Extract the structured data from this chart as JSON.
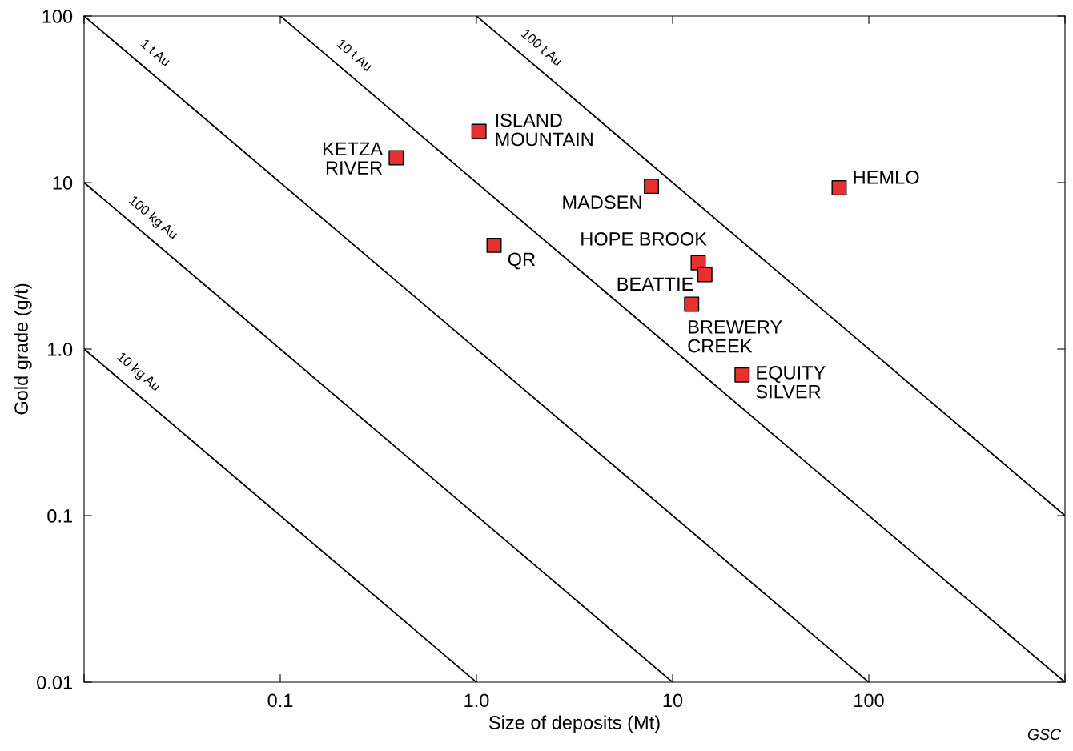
{
  "chart_data": {
    "type": "scatter",
    "log": "xy",
    "xlabel": "Size of deposits (Mt)",
    "ylabel": "Gold grade (g/t)",
    "xlim": [
      0.01,
      1000
    ],
    "ylim": [
      0.01,
      100
    ],
    "xticks": [
      {
        "value": 0.01,
        "label": null
      },
      0.1,
      {
        "value": 1,
        "label": "1.0"
      },
      10,
      100,
      {
        "value": 1000,
        "label": null
      }
    ],
    "yticks": [
      0.01,
      0.1,
      {
        "value": 1,
        "label": "1.0"
      },
      10,
      100
    ],
    "grid": false,
    "marker": "square",
    "series": [
      {
        "name": "10 kg Au",
        "type": "line",
        "marker": "none",
        "color": "#000000",
        "x": [
          0.01,
          1
        ],
        "values": [
          1,
          0.01
        ]
      },
      {
        "name": "100 kg Au",
        "type": "line",
        "marker": "none",
        "color": "#000000",
        "x": [
          0.01,
          10
        ],
        "values": [
          10,
          0.01
        ]
      },
      {
        "name": "1 t Au",
        "type": "line",
        "marker": "none",
        "color": "#000000",
        "x": [
          0.01,
          100
        ],
        "values": [
          100,
          0.01
        ]
      },
      {
        "name": "10 t Au",
        "type": "line",
        "marker": "none",
        "color": "#000000",
        "x": [
          0.1,
          1000
        ],
        "values": [
          100,
          0.01
        ]
      },
      {
        "name": "100 t Au",
        "type": "line",
        "marker": "none",
        "color": "#000000",
        "x": [
          1,
          1000
        ],
        "values": [
          100,
          0.1
        ]
      },
      {
        "color": "#e8312f",
        "x": [
          0.39,
          1.03,
          7.8,
          70.6,
          1.23,
          13.5,
          14.6,
          12.5,
          22.6
        ],
        "values": [
          14.1,
          20.3,
          9.5,
          9.3,
          4.2,
          3.3,
          2.8,
          1.86,
          0.7
        ]
      }
    ],
    "annotations": [
      {
        "text": "KETZA\nRIVER",
        "x": 0.39,
        "y": 14.1
      },
      {
        "text": "ISLAND\nMOUNTAIN",
        "x": 1.03,
        "y": 20.3
      },
      {
        "text": "MADSEN",
        "x": 7.8,
        "y": 9.5
      },
      {
        "text": "HEMLO",
        "x": 70.6,
        "y": 9.3
      },
      {
        "text": "QR",
        "x": 1.23,
        "y": 4.2
      },
      {
        "text": "HOPE BROOK",
        "x": 13.5,
        "y": 3.3
      },
      {
        "text": "BEATTIE",
        "x": 14.6,
        "y": 2.8
      },
      {
        "text": "BREWERY\nCREEK",
        "x": 12.5,
        "y": 1.86
      },
      {
        "text": "EQUITY\nSILVER",
        "x": 22.6,
        "y": 0.7
      },
      "GSC"
    ]
  }
}
